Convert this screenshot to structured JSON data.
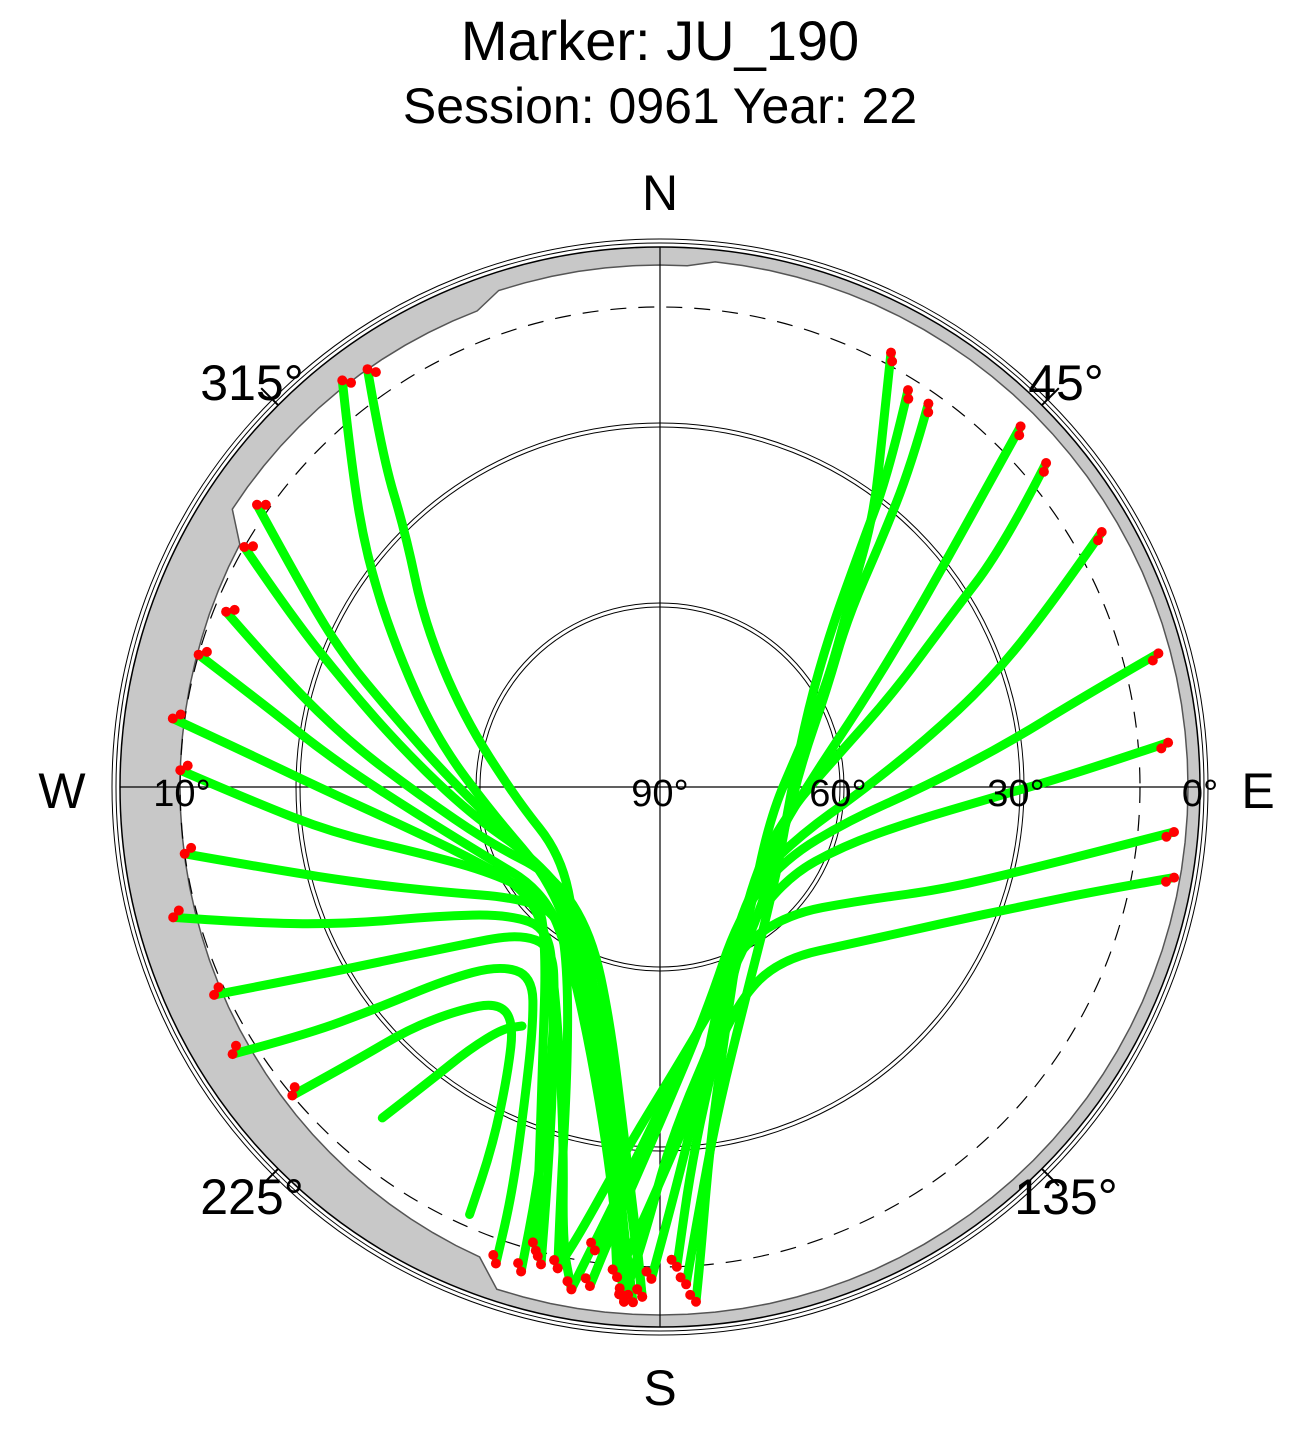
{
  "chart_data": {
    "type": "scatter",
    "title": "Marker: JU_190",
    "subtitle": "Session: 0961 Year: 22",
    "projection": "polar skyplot (azimuth clockwise from north, elevation radial)",
    "compass": {
      "north": "N",
      "east": "E",
      "south": "S",
      "west": "W"
    },
    "azimuth_labels": [
      "45°",
      "135°",
      "225°",
      "315°"
    ],
    "azimuth_label_values": [
      45,
      135,
      225,
      315
    ],
    "elevation_labels": [
      "90°",
      "60°",
      "30°",
      "10°",
      "0°"
    ],
    "elevation_rings": [
      60,
      30
    ],
    "elevation_mask_dashed": 10,
    "colors": {
      "track": "#00ff00",
      "track_end": "#ff0000",
      "obstruction": "#c8c8c8",
      "grid": "#000000"
    },
    "series": [
      {
        "name": "",
        "points": [
          [
            35,
            12
          ],
          [
            38,
            22
          ],
          [
            42,
            35
          ],
          [
            48,
            48
          ],
          [
            60,
            58
          ],
          [
            80,
            66
          ],
          [
            110,
            68
          ],
          [
            150,
            60
          ],
          [
            175,
            45
          ],
          [
            185,
            30
          ],
          [
            190,
            15
          ],
          [
            192,
            8
          ]
        ]
      },
      {
        "name": "",
        "points": [
          [
            32,
            12
          ],
          [
            36,
            25
          ],
          [
            40,
            38
          ],
          [
            48,
            52
          ],
          [
            62,
            62
          ],
          [
            90,
            68
          ],
          [
            130,
            65
          ],
          [
            158,
            52
          ],
          [
            170,
            35
          ],
          [
            175,
            18
          ],
          [
            177,
            7
          ]
        ]
      },
      {
        "name": "",
        "points": [
          [
            28,
            8
          ],
          [
            32,
            20
          ],
          [
            38,
            32
          ],
          [
            45,
            45
          ],
          [
            58,
            57
          ],
          [
            75,
            66
          ],
          [
            105,
            71
          ],
          [
            145,
            64
          ],
          [
            165,
            50
          ],
          [
            178,
            32
          ],
          [
            182,
            15
          ],
          [
            184,
            5
          ]
        ]
      },
      {
        "name": "",
        "points": [
          [
            45,
            5
          ],
          [
            48,
            18
          ],
          [
            52,
            30
          ],
          [
            58,
            42
          ],
          [
            68,
            54
          ],
          [
            85,
            64
          ],
          [
            115,
            69
          ],
          [
            150,
            63
          ],
          [
            165,
            48
          ],
          [
            172,
            30
          ],
          [
            175,
            12
          ],
          [
            176,
            4
          ]
        ]
      },
      {
        "name": "",
        "points": [
          [
            50,
            6
          ],
          [
            55,
            20
          ],
          [
            60,
            35
          ],
          [
            68,
            48
          ],
          [
            80,
            60
          ],
          [
            100,
            68
          ],
          [
            130,
            69
          ],
          [
            155,
            60
          ],
          [
            168,
            45
          ],
          [
            175,
            28
          ],
          [
            178,
            10
          ]
        ]
      },
      {
        "name": "",
        "points": [
          [
            60,
            5
          ],
          [
            65,
            18
          ],
          [
            72,
            32
          ],
          [
            80,
            45
          ],
          [
            92,
            57
          ],
          [
            108,
            65
          ],
          [
            135,
            68
          ],
          [
            160,
            58
          ],
          [
            172,
            40
          ],
          [
            178,
            22
          ],
          [
            181,
            8
          ]
        ]
      },
      {
        "name": "",
        "points": [
          [
            75,
            4
          ],
          [
            78,
            18
          ],
          [
            83,
            32
          ],
          [
            90,
            46
          ],
          [
            100,
            58
          ],
          [
            120,
            66
          ],
          [
            148,
            65
          ],
          [
            168,
            52
          ],
          [
            180,
            34
          ],
          [
            186,
            16
          ],
          [
            188,
            6
          ]
        ]
      },
      {
        "name": "",
        "points": [
          [
            85,
            5
          ],
          [
            88,
            20
          ],
          [
            92,
            35
          ],
          [
            98,
            48
          ],
          [
            108,
            58
          ],
          [
            125,
            64
          ],
          [
            150,
            62
          ],
          [
            170,
            50
          ],
          [
            182,
            32
          ],
          [
            188,
            14
          ],
          [
            190,
            5
          ]
        ]
      },
      {
        "name": "",
        "points": [
          [
            95,
            4
          ],
          [
            98,
            15
          ],
          [
            103,
            28
          ],
          [
            110,
            40
          ],
          [
            120,
            52
          ],
          [
            135,
            60
          ],
          [
            155,
            60
          ],
          [
            172,
            48
          ],
          [
            182,
            30
          ],
          [
            188,
            12
          ]
        ]
      },
      {
        "name": "",
        "points": [
          [
            100,
            3
          ],
          [
            103,
            14
          ],
          [
            108,
            26
          ],
          [
            116,
            38
          ],
          [
            128,
            48
          ],
          [
            145,
            55
          ],
          [
            160,
            52
          ],
          [
            172,
            40
          ],
          [
            180,
            24
          ],
          [
            185,
            8
          ]
        ]
      },
      {
        "name": "",
        "points": [
          [
            325,
            5
          ],
          [
            320,
            18
          ],
          [
            315,
            30
          ],
          [
            305,
            42
          ],
          [
            290,
            55
          ],
          [
            265,
            66
          ],
          [
            235,
            70
          ],
          [
            210,
            62
          ],
          [
            195,
            48
          ],
          [
            188,
            30
          ],
          [
            185,
            15
          ],
          [
            184,
            4
          ]
        ]
      },
      {
        "name": "",
        "points": [
          [
            322,
            4
          ],
          [
            316,
            16
          ],
          [
            308,
            28
          ],
          [
            298,
            40
          ],
          [
            282,
            52
          ],
          [
            260,
            62
          ],
          [
            230,
            66
          ],
          [
            205,
            58
          ],
          [
            192,
            42
          ],
          [
            187,
            25
          ],
          [
            185,
            8
          ]
        ]
      },
      {
        "name": "",
        "points": [
          [
            305,
            8
          ],
          [
            300,
            20
          ],
          [
            293,
            32
          ],
          [
            285,
            44
          ],
          [
            272,
            55
          ],
          [
            250,
            64
          ],
          [
            220,
            66
          ],
          [
            198,
            55
          ],
          [
            188,
            38
          ],
          [
            184,
            20
          ],
          [
            182,
            5
          ]
        ]
      },
      {
        "name": "",
        "points": [
          [
            300,
            10
          ],
          [
            295,
            22
          ],
          [
            288,
            35
          ],
          [
            278,
            47
          ],
          [
            262,
            58
          ],
          [
            240,
            66
          ],
          [
            212,
            65
          ],
          [
            196,
            52
          ],
          [
            188,
            35
          ],
          [
            185,
            18
          ],
          [
            183,
            4
          ]
        ]
      },
      {
        "name": "",
        "points": [
          [
            292,
            12
          ],
          [
            286,
            25
          ],
          [
            278,
            38
          ],
          [
            268,
            50
          ],
          [
            252,
            60
          ],
          [
            230,
            67
          ],
          [
            205,
            63
          ],
          [
            192,
            50
          ],
          [
            186,
            32
          ],
          [
            183,
            15
          ],
          [
            182,
            5
          ]
        ]
      },
      {
        "name": "",
        "points": [
          [
            286,
            10
          ],
          [
            282,
            22
          ],
          [
            275,
            35
          ],
          [
            265,
            48
          ],
          [
            250,
            58
          ],
          [
            228,
            64
          ],
          [
            208,
            58
          ],
          [
            195,
            45
          ],
          [
            188,
            28
          ],
          [
            185,
            12
          ],
          [
            184,
            4
          ]
        ]
      },
      {
        "name": "",
        "points": [
          [
            278,
            8
          ],
          [
            275,
            20
          ],
          [
            270,
            33
          ],
          [
            262,
            46
          ],
          [
            250,
            56
          ],
          [
            232,
            62
          ],
          [
            215,
            58
          ],
          [
            202,
            45
          ],
          [
            195,
            28
          ],
          [
            192,
            12
          ],
          [
            190,
            5
          ]
        ]
      },
      {
        "name": "",
        "points": [
          [
            272,
            10
          ],
          [
            268,
            22
          ],
          [
            262,
            35
          ],
          [
            255,
            48
          ],
          [
            244,
            58
          ],
          [
            228,
            63
          ],
          [
            214,
            56
          ],
          [
            204,
            42
          ],
          [
            198,
            25
          ],
          [
            195,
            10
          ]
        ]
      },
      {
        "name": "",
        "points": [
          [
            262,
            10
          ],
          [
            258,
            24
          ],
          [
            252,
            38
          ],
          [
            244,
            50
          ],
          [
            232,
            60
          ],
          [
            218,
            63
          ],
          [
            206,
            55
          ],
          [
            198,
            40
          ],
          [
            194,
            22
          ],
          [
            192,
            8
          ]
        ]
      },
      {
        "name": "",
        "points": [
          [
            255,
            6
          ],
          [
            251,
            20
          ],
          [
            246,
            34
          ],
          [
            240,
            47
          ],
          [
            230,
            57
          ],
          [
            218,
            60
          ],
          [
            208,
            52
          ],
          [
            200,
            38
          ],
          [
            196,
            22
          ],
          [
            194,
            8
          ]
        ]
      },
      {
        "name": "",
        "points": [
          [
            245,
            8
          ],
          [
            242,
            22
          ],
          [
            238,
            35
          ],
          [
            232,
            47
          ],
          [
            224,
            56
          ],
          [
            214,
            58
          ],
          [
            206,
            50
          ],
          [
            200,
            36
          ],
          [
            197,
            20
          ],
          [
            196,
            6
          ]
        ]
      },
      {
        "name": "",
        "points": [
          [
            238,
            6
          ],
          [
            235,
            18
          ],
          [
            232,
            30
          ],
          [
            228,
            42
          ],
          [
            222,
            50
          ],
          [
            214,
            52
          ],
          [
            208,
            45
          ],
          [
            203,
            32
          ],
          [
            200,
            18
          ],
          [
            199,
            6
          ]
        ]
      },
      {
        "name": "",
        "points": [
          [
            230,
            10
          ],
          [
            228,
            22
          ],
          [
            226,
            32
          ],
          [
            222,
            40
          ],
          [
            217,
            45
          ],
          [
            212,
            44
          ],
          [
            208,
            36
          ],
          [
            205,
            24
          ],
          [
            204,
            12
          ]
        ]
      },
      {
        "name": "",
        "points": [
          [
            220,
            18
          ],
          [
            218,
            28
          ],
          [
            216,
            36
          ],
          [
            213,
            42
          ],
          [
            210,
            44
          ]
        ]
      }
    ],
    "end_points": [
      [
        35,
        12
      ],
      [
        32,
        12
      ],
      [
        28,
        8
      ],
      [
        45,
        5
      ],
      [
        50,
        6
      ],
      [
        60,
        5
      ],
      [
        75,
        4
      ],
      [
        85,
        5
      ],
      [
        95,
        4
      ],
      [
        100,
        3
      ],
      [
        325,
        5
      ],
      [
        322,
        4
      ],
      [
        305,
        8
      ],
      [
        300,
        10
      ],
      [
        292,
        12
      ],
      [
        286,
        10
      ],
      [
        278,
        8
      ],
      [
        272,
        10
      ],
      [
        262,
        10
      ],
      [
        255,
        6
      ],
      [
        245,
        8
      ],
      [
        238,
        6
      ],
      [
        230,
        10
      ],
      [
        192,
        8
      ],
      [
        177,
        7
      ],
      [
        184,
        5
      ],
      [
        176,
        4
      ],
      [
        178,
        10
      ],
      [
        181,
        8
      ],
      [
        188,
        6
      ],
      [
        190,
        5
      ],
      [
        188,
        12
      ],
      [
        185,
        8
      ],
      [
        184,
        4
      ],
      [
        185,
        8
      ],
      [
        182,
        5
      ],
      [
        183,
        4
      ],
      [
        182,
        5
      ],
      [
        184,
        4
      ],
      [
        190,
        5
      ],
      [
        195,
        10
      ],
      [
        192,
        8
      ],
      [
        194,
        8
      ],
      [
        196,
        6
      ],
      [
        199,
        6
      ]
    ]
  }
}
